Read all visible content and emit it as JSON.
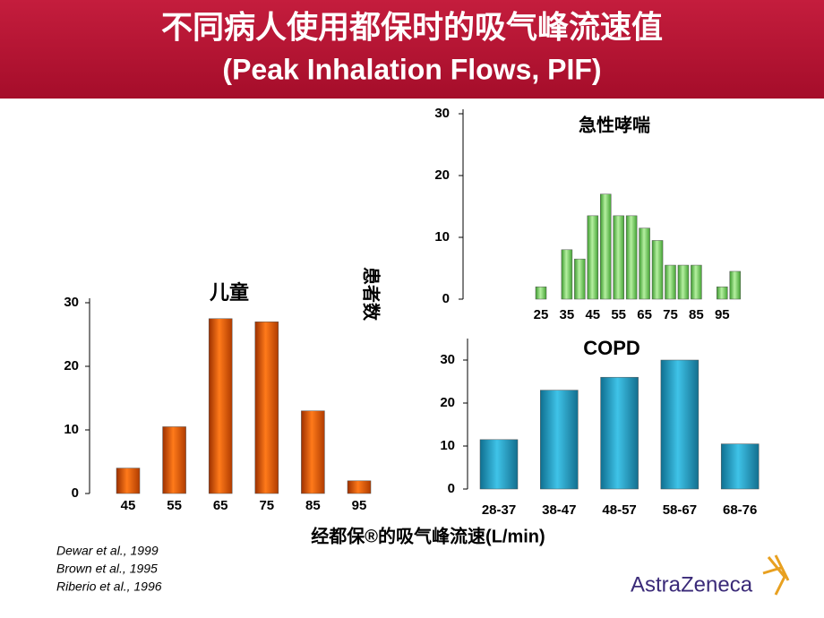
{
  "slide_title": "不同病人使用都保时的吸气峰流速值",
  "slide_subtitle": "(Peak Inhalation Flows, PIF)",
  "x_axis_label": "经都保®的吸气峰流速(L/min)",
  "y_axis_label": "患者数",
  "references": [
    "Dewar et al., 1999",
    "Brown et al., 1995",
    "Riberio et al., 1996"
  ],
  "logo": "AstraZeneca",
  "chart_data": [
    {
      "type": "bar",
      "title": "儿童",
      "color": "#d45500",
      "categories": [
        "45",
        "55",
        "65",
        "75",
        "85",
        "95"
      ],
      "values": [
        4,
        10.5,
        27.5,
        27,
        13,
        2
      ],
      "ylim": [
        0,
        30
      ],
      "yticks": [
        0,
        10,
        20,
        30
      ]
    },
    {
      "type": "bar",
      "title": "急性哮喘",
      "color": "#5fbf4a",
      "categories": [
        "25",
        null,
        "35",
        null,
        "45",
        null,
        "55",
        null,
        "65",
        null,
        "75",
        null,
        "85",
        null,
        "95",
        null
      ],
      "values": [
        2,
        0,
        8,
        6.5,
        13.5,
        17,
        13.5,
        13.5,
        11.5,
        9.5,
        5.5,
        5.5,
        5.5,
        0,
        2,
        4.5
      ],
      "ylim": [
        0,
        30
      ],
      "yticks": [
        0,
        10,
        20,
        30
      ]
    },
    {
      "type": "bar",
      "title": "COPD",
      "color": "#1996bd",
      "categories": [
        "28-37",
        "38-47",
        "48-57",
        "58-67",
        "68-76"
      ],
      "values": [
        11.5,
        23,
        26,
        30,
        10.5
      ],
      "ylim": [
        0,
        35
      ],
      "yticks": [
        0,
        10,
        20,
        30
      ]
    }
  ]
}
